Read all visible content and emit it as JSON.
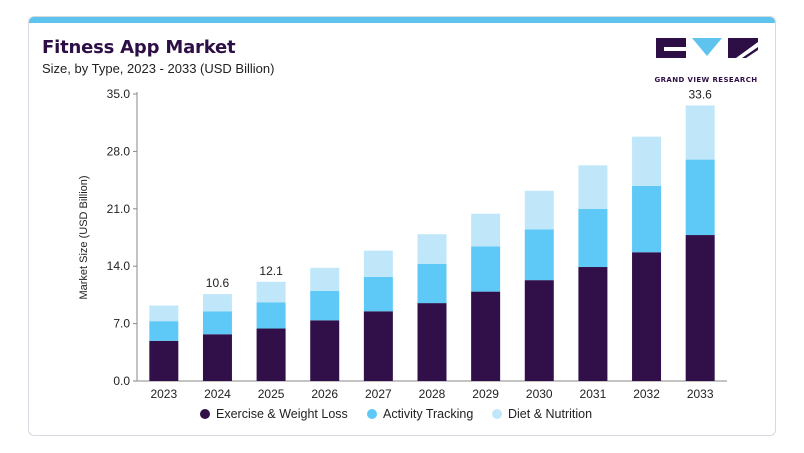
{
  "header": {
    "title": "Fitness App Market",
    "subtitle": "Size, by Type, 2023 - 2033 (USD Billion)"
  },
  "brand": {
    "logo_text": "GRAND VIEW RESEARCH",
    "primary_color": "#2d0f45",
    "accent_color": "#5ec4ee"
  },
  "chart_data": {
    "type": "bar",
    "stacked": true,
    "categories": [
      "2023",
      "2024",
      "2025",
      "2026",
      "2027",
      "2028",
      "2029",
      "2030",
      "2031",
      "2032",
      "2033"
    ],
    "series": [
      {
        "name": "Exercise & Weight Loss",
        "color": "#310f48",
        "values": [
          4.9,
          5.7,
          6.4,
          7.4,
          8.5,
          9.5,
          10.9,
          12.3,
          13.9,
          15.7,
          17.8
        ]
      },
      {
        "name": "Activity Tracking",
        "color": "#5ec8f6",
        "values": [
          2.4,
          2.8,
          3.2,
          3.6,
          4.2,
          4.8,
          5.5,
          6.2,
          7.1,
          8.1,
          9.2
        ]
      },
      {
        "name": "Diet & Nutrition",
        "color": "#bfe7f9",
        "values": [
          1.9,
          2.1,
          2.5,
          2.8,
          3.2,
          3.6,
          4.0,
          4.7,
          5.3,
          6.0,
          6.6
        ]
      }
    ],
    "data_labels": [
      {
        "category": "2024",
        "text": "10.6",
        "value": 10.6
      },
      {
        "category": "2025",
        "text": "12.1",
        "value": 12.1
      },
      {
        "category": "2033",
        "text": "33.6",
        "value": 33.6
      }
    ],
    "yticks": [
      "0.0",
      "7.0",
      "14.0",
      "21.0",
      "28.0",
      "35.0"
    ],
    "ylim": [
      0,
      35
    ],
    "ylabel": "Market Size (USD Billion)",
    "xlabel": "",
    "grid": false,
    "legend_position": "bottom"
  }
}
